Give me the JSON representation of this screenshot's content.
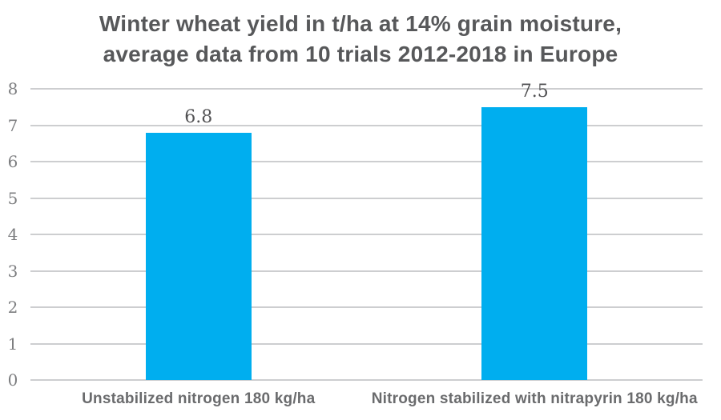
{
  "chart_data": {
    "type": "bar",
    "title": "Winter wheat yield in t/ha at 14% grain moisture, average data from 10 trials 2012-2018 in Europe",
    "title_lines": [
      "Winter wheat yield in t/ha at 14% grain moisture,",
      "average data from 10 trials 2012-2018 in Europe"
    ],
    "categories": [
      "Unstabilized nitrogen 180 kg/ha",
      "Nitrogen stabilized with nitrapyrin 180 kg/ha"
    ],
    "values": [
      6.8,
      7.5
    ],
    "value_labels": [
      "6.8",
      "7.5"
    ],
    "xlabel": "",
    "ylabel": "",
    "ylim": [
      0,
      8
    ],
    "yticks": [
      0,
      1,
      2,
      3,
      4,
      5,
      6,
      7,
      8
    ],
    "grid": "horizontal",
    "legend": "none",
    "colors": {
      "bar": "#00aeef",
      "gridline": "#cdced0",
      "title_text": "#57585a",
      "category_text": "#6a6b6d",
      "tick_text": "#7d7e80",
      "value_text": "#525254",
      "background": "#ffffff"
    }
  }
}
